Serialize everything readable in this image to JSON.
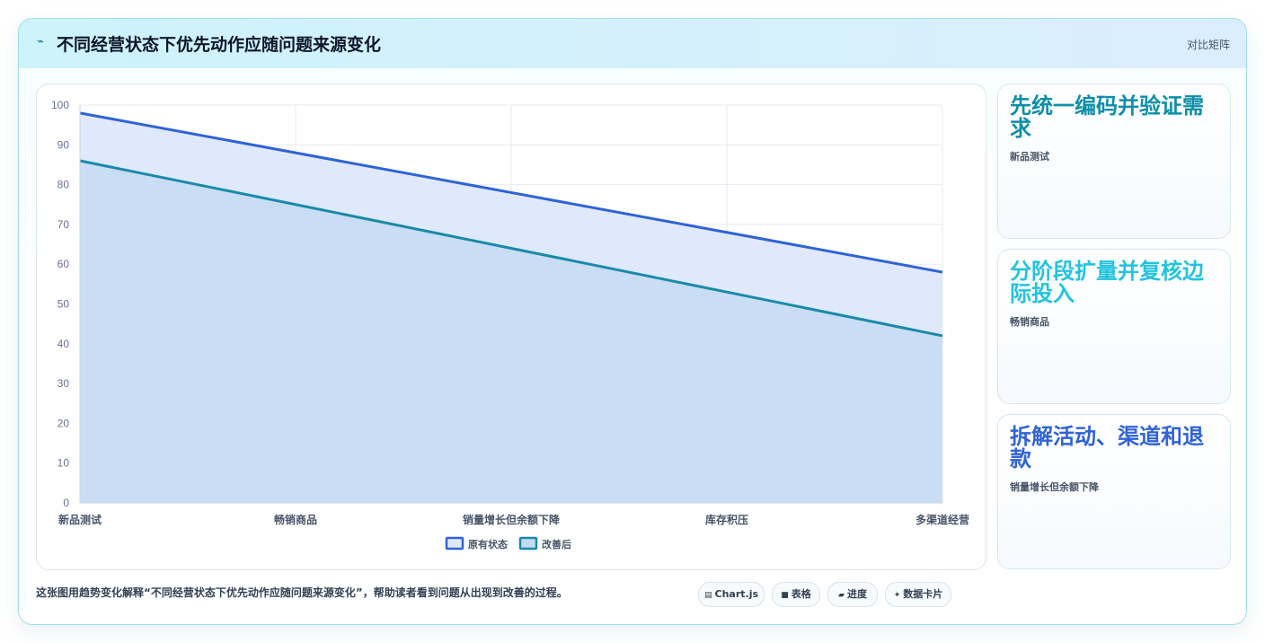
{
  "header": {
    "icon": "lightning-icon",
    "title": "不同经营状态下优先动作应随问题来源变化",
    "tag": "对比矩阵"
  },
  "chart_data": {
    "type": "area",
    "categories": [
      "新品测试",
      "畅销商品",
      "销量增长但余额下降",
      "库存积压",
      "多渠道经营"
    ],
    "series": [
      {
        "name": "原有状态",
        "values": [
          98,
          88,
          78,
          68,
          58
        ],
        "color": "#2f63d6",
        "fill": "#e0e9fc"
      },
      {
        "name": "改善后",
        "values": [
          86,
          75,
          64,
          53,
          42
        ],
        "color": "#1a8aa8",
        "fill": "#c4dcf2"
      }
    ],
    "ylim": [
      0,
      100
    ],
    "yticks": [
      0,
      10,
      20,
      30,
      40,
      50,
      60,
      70,
      80,
      90,
      100
    ],
    "grid": true,
    "legend": "bottom"
  },
  "side_cards": [
    {
      "big": "先统一编码并验证需求",
      "sub": "新品测试",
      "color": "#0e8ea8"
    },
    {
      "big": "分阶段扩量并复核边际投入",
      "sub": "畅销商品",
      "color": "#22c3dd"
    },
    {
      "big": "拆解活动、渠道和退款",
      "sub": "销量增长但余额下降",
      "color": "#2f63d6"
    }
  ],
  "footer": {
    "text": "这张图用趋势变化解释“不同经营状态下优先动作应随问题来源变化”，帮助读者看到问题从出现到改善的过程。",
    "pills": [
      {
        "icon": "chart-icon",
        "glyph": "▤",
        "label": "Chart.js"
      },
      {
        "icon": "table-icon",
        "glyph": "■",
        "label": "表格"
      },
      {
        "icon": "progress-icon",
        "glyph": "▰",
        "label": "进度"
      },
      {
        "icon": "sparkle-icon",
        "glyph": "✦",
        "label": "数据卡片"
      }
    ]
  }
}
